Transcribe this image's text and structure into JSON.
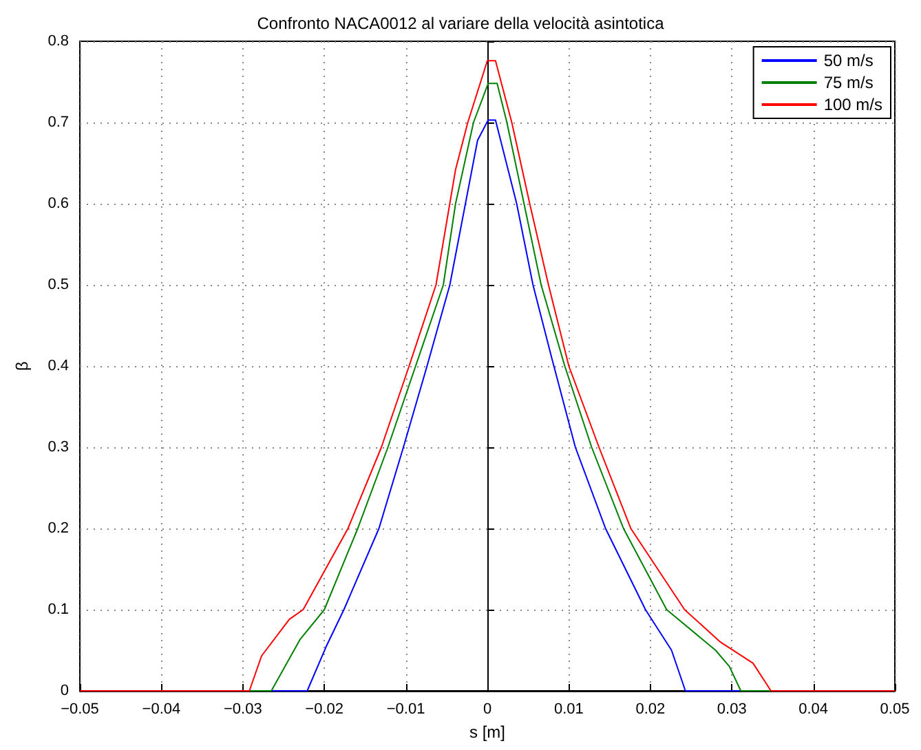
{
  "chart_data": {
    "type": "line",
    "title": "Confronto NACA0012 al variare della velocità asintotica",
    "xlabel": "s [m]",
    "ylabel": "β",
    "xlim": [
      -0.05,
      0.05
    ],
    "xticks": [
      {
        "value": -0.05,
        "label": "−0.05"
      },
      {
        "value": -0.04,
        "label": "−0.04"
      },
      {
        "value": -0.03,
        "label": "−0.03"
      },
      {
        "value": -0.02,
        "label": "−0.02"
      },
      {
        "value": -0.01,
        "label": "−0.01"
      },
      0,
      0.01,
      0.02,
      0.03,
      0.04,
      0.05
    ],
    "ylim": [
      0,
      0.8
    ],
    "yticks": [
      0,
      0.1,
      0.2,
      0.3,
      0.4,
      0.5,
      0.6,
      0.7,
      0.8
    ],
    "grid": true,
    "legend": "top right",
    "line_style": "solid",
    "marker": "none",
    "series": [
      {
        "name": "50 m/s",
        "color": "#0000ff",
        "x": [
          -0.05,
          -0.0221,
          -0.0198,
          -0.0176,
          -0.0133,
          -0.0103,
          -0.0074,
          -0.0046,
          -0.0012,
          0.0001,
          0.001,
          0.0036,
          0.0056,
          0.0079,
          0.0108,
          0.0145,
          0.0194,
          0.0226,
          0.0243,
          0.05
        ],
        "values": [
          0,
          0,
          0.054,
          0.1,
          0.2,
          0.3,
          0.4,
          0.5,
          0.678,
          0.703,
          0.703,
          0.6,
          0.5,
          0.41,
          0.3,
          0.2,
          0.1,
          0.05,
          0,
          0
        ]
      },
      {
        "name": "75 m/s",
        "color": "#008000",
        "x": [
          -0.05,
          -0.0265,
          -0.023,
          -0.02,
          -0.0159,
          -0.0122,
          -0.0088,
          -0.0054,
          -0.0039,
          -0.0017,
          0.0001,
          0.0012,
          0.0024,
          0.0045,
          0.0066,
          0.0095,
          0.0128,
          0.0167,
          0.022,
          0.028,
          0.0297,
          0.0311,
          0.05
        ],
        "values": [
          0,
          0,
          0.063,
          0.1,
          0.2,
          0.3,
          0.4,
          0.5,
          0.6,
          0.7,
          0.748,
          0.748,
          0.7,
          0.6,
          0.5,
          0.4,
          0.3,
          0.2,
          0.1,
          0.05,
          0.03,
          0,
          0
        ]
      },
      {
        "name": "100 m/s",
        "color": "#ff0000",
        "x": [
          -0.05,
          -0.0292,
          -0.0277,
          -0.0243,
          -0.0226,
          -0.0171,
          -0.013,
          -0.0096,
          -0.0063,
          -0.0039,
          -0.0024,
          0,
          0.001,
          0.003,
          0.0052,
          0.0075,
          0.01,
          0.0137,
          0.0176,
          0.0242,
          0.0286,
          0.0326,
          0.0348,
          0.05
        ],
        "values": [
          0,
          0,
          0.043,
          0.088,
          0.1,
          0.2,
          0.3,
          0.4,
          0.5,
          0.642,
          0.7,
          0.776,
          0.776,
          0.7,
          0.6,
          0.5,
          0.4,
          0.3,
          0.2,
          0.1,
          0.06,
          0.034,
          0,
          0
        ]
      }
    ]
  }
}
